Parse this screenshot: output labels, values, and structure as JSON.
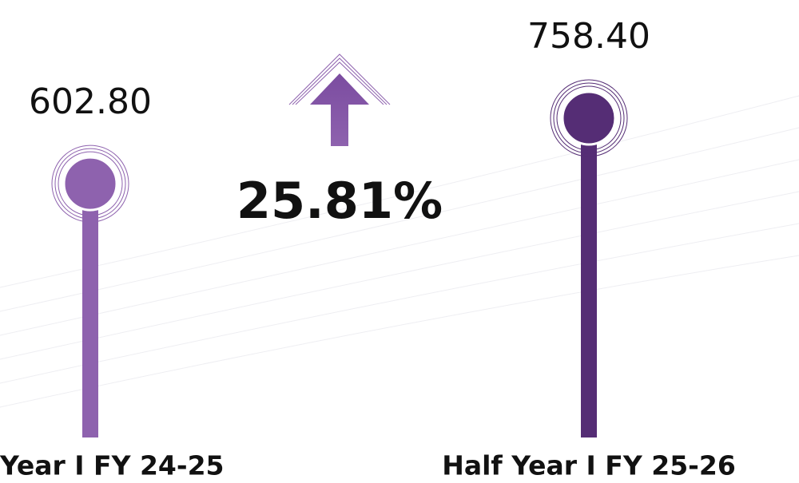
{
  "chart_data": {
    "type": "lollipop",
    "categories": [
      "Year I FY 24-25",
      "Half Year I FY 25-26"
    ],
    "values": [
      602.8,
      758.4
    ],
    "value_labels": [
      "602.80",
      "758.40"
    ],
    "colors": [
      "#8e62ae",
      "#552d75"
    ],
    "annotation": "25.81%"
  }
}
